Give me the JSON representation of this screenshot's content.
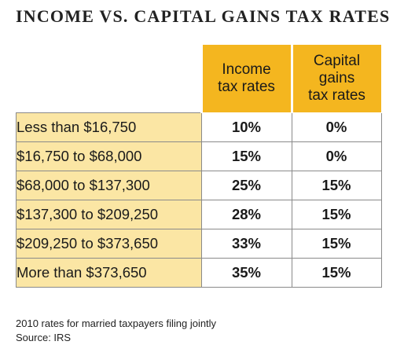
{
  "chart_data": {
    "type": "table",
    "title": "INCOME VS. CAPITAL GAINS TAX RATES",
    "columns": [
      {
        "lines": [
          "Income",
          "tax rates"
        ]
      },
      {
        "lines": [
          "Capital",
          "gains",
          "tax rates"
        ]
      }
    ],
    "rows": [
      {
        "bracket": "Less than $16,750",
        "income": "10%",
        "capital_gains": "0%"
      },
      {
        "bracket": "$16,750 to $68,000",
        "income": "15%",
        "capital_gains": "0%"
      },
      {
        "bracket": "$68,000 to $137,300",
        "income": "25%",
        "capital_gains": "15%"
      },
      {
        "bracket": "$137,300 to $209,250",
        "income": "28%",
        "capital_gains": "15%"
      },
      {
        "bracket": "$209,250 to $373,650",
        "income": "33%",
        "capital_gains": "15%"
      },
      {
        "bracket": "More than $373,650",
        "income": "35%",
        "capital_gains": "15%"
      }
    ],
    "footnote": "2010 rates for married taxpayers filing jointly",
    "source": "Source: IRS",
    "colors": {
      "header": "#f4b61f",
      "bracket_cells": "#fbe6a4",
      "value_cells": "#ffffff"
    }
  }
}
